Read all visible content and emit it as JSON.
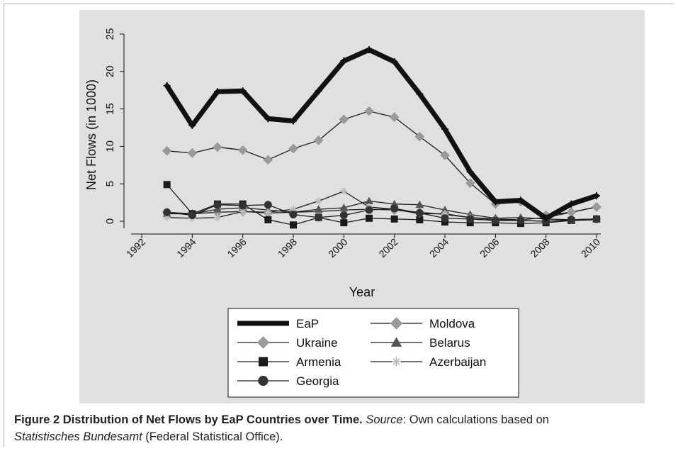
{
  "chart_data": {
    "type": "line",
    "xlabel": "Year",
    "ylabel": "Net Flows (in 1000)",
    "xlim": [
      1992,
      2010
    ],
    "ylim": [
      0,
      25
    ],
    "xticks": [
      "1992",
      "1994",
      "1996",
      "1998",
      "2000",
      "2002",
      "2004",
      "2006",
      "2008",
      "2010"
    ],
    "yticks": [
      "0",
      "5",
      "10",
      "15",
      "20",
      "25"
    ],
    "grid": false,
    "legend_position": "bottom",
    "legend_columns": 2,
    "colors": {
      "plot_background": "#e0e0e0",
      "legend_background": "#ffffff",
      "eap": "#111111",
      "gray_marker": "#9a9a9a",
      "dark_marker": "#333333"
    },
    "x": [
      1993,
      1994,
      1995,
      1996,
      1997,
      1998,
      1999,
      2000,
      2001,
      2002,
      2003,
      2004,
      2005,
      2006,
      2007,
      2008,
      2009,
      2010
    ],
    "series": [
      {
        "name": "EaP",
        "marker": "plus",
        "values": [
          18.1,
          12.8,
          17.3,
          17.4,
          13.7,
          13.4,
          17.4,
          21.4,
          22.9,
          21.3,
          17.0,
          12.3,
          6.6,
          2.6,
          2.8,
          0.4,
          2.3,
          3.4
        ]
      },
      {
        "name": "Moldova",
        "marker": "diamond",
        "values": [
          1.2,
          1.0,
          1.2,
          1.3,
          1.1,
          1.2,
          1.3,
          1.5,
          1.6,
          1.5,
          1.2,
          0.9,
          0.5,
          0.3,
          0.2,
          0.5,
          1.2,
          1.9
        ]
      },
      {
        "name": "Ukraine",
        "marker": "diamond",
        "values": [
          9.4,
          9.1,
          9.9,
          9.5,
          8.2,
          9.7,
          10.8,
          13.6,
          14.7,
          13.9,
          11.3,
          8.8,
          5.1,
          2.3,
          2.6,
          0.8,
          1.2,
          1.9
        ]
      },
      {
        "name": "Belarus",
        "marker": "triangle",
        "values": [
          1.0,
          1.0,
          1.6,
          1.8,
          1.5,
          1.2,
          1.6,
          1.8,
          2.7,
          2.3,
          2.2,
          1.5,
          0.9,
          0.4,
          0.5,
          0.3,
          0.2,
          0.3
        ]
      },
      {
        "name": "Armenia",
        "marker": "square",
        "values": [
          4.9,
          1.0,
          2.3,
          2.3,
          0.2,
          -0.5,
          0.5,
          -0.2,
          0.4,
          0.3,
          0.2,
          -0.1,
          -0.2,
          -0.2,
          -0.3,
          -0.2,
          0.1,
          0.3
        ]
      },
      {
        "name": "Azerbaijan",
        "marker": "star",
        "values": [
          0.5,
          0.4,
          0.5,
          1.3,
          1.2,
          1.6,
          2.7,
          4.0,
          1.9,
          1.6,
          1.0,
          1.0,
          0.5,
          0.2,
          0.1,
          0.0,
          0.1,
          0.2
        ]
      },
      {
        "name": "Georgia",
        "marker": "circle",
        "values": [
          1.2,
          0.8,
          2.2,
          2.1,
          2.2,
          0.9,
          0.5,
          0.8,
          1.5,
          1.7,
          1.1,
          0.4,
          0.3,
          0.1,
          0.1,
          0.0,
          0.2,
          0.3
        ]
      }
    ]
  },
  "caption": {
    "label": "Figure 2 Distribution of Net Flows by EaP Countries over Time.",
    "source_label": "Source",
    "source_text": ": Own calculations based on",
    "office_name": "Statistisches Bundesamt",
    "office_note": " (Federal Statistical Office)."
  }
}
